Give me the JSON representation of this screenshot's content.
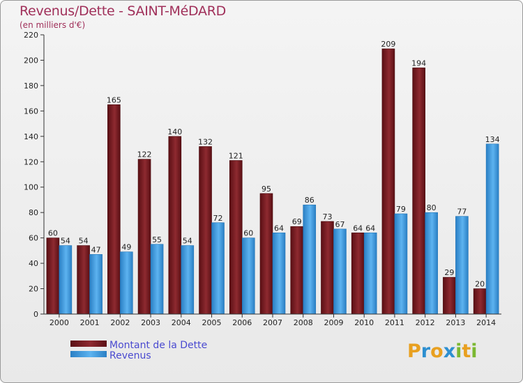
{
  "header": {
    "title": "Revenus/Dette - SAINT-MéDARD",
    "subtitle": "(en milliers d'€)"
  },
  "logo": {
    "letters": [
      "P",
      "r",
      "o",
      "x",
      "i",
      "t",
      "i"
    ],
    "colors": [
      "#e8a020",
      "#2d8fd0",
      "#e8a020",
      "#2d8fd0",
      "#7bb832",
      "#e8a020",
      "#7bb832"
    ]
  },
  "colors": {
    "dette": "#7a1c22",
    "revenus": "#3b9ae0",
    "axis": "#333333",
    "grid": "#cfcfcf"
  },
  "chart_data": {
    "type": "bar",
    "categories": [
      "2000",
      "2001",
      "2002",
      "2003",
      "2004",
      "2005",
      "2006",
      "2007",
      "2008",
      "2009",
      "2010",
      "2011",
      "2012",
      "2013",
      "2014"
    ],
    "series": [
      {
        "name": "Montant de la Dette",
        "values": [
          60,
          54,
          165,
          122,
          140,
          132,
          121,
          95,
          69,
          73,
          64,
          209,
          194,
          29,
          20
        ]
      },
      {
        "name": "Revenus",
        "values": [
          54,
          47,
          49,
          55,
          54,
          72,
          60,
          64,
          86,
          67,
          64,
          79,
          80,
          77,
          134
        ]
      }
    ],
    "yticks": [
      0,
      20,
      40,
      60,
      80,
      100,
      120,
      140,
      160,
      180,
      200,
      220
    ],
    "ylim": [
      0,
      220
    ],
    "grid": false,
    "legend": "bottom-left"
  }
}
